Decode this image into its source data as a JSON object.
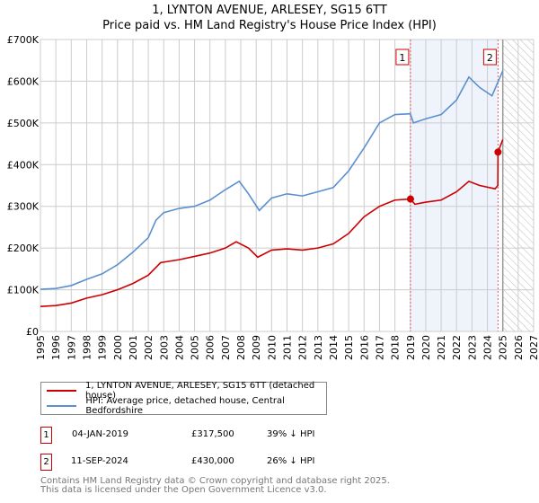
{
  "title": "1, LYNTON AVENUE, ARLESEY, SG15 6TT",
  "subtitle": "Price paid vs. HM Land Registry's House Price Index (HPI)",
  "chart_data": {
    "type": "line",
    "xlim": [
      1995,
      2027
    ],
    "ylim": [
      0,
      700000
    ],
    "x_ticks": [
      "1995",
      "1996",
      "1997",
      "1998",
      "1999",
      "2000",
      "2001",
      "2002",
      "2003",
      "2004",
      "2005",
      "2006",
      "2007",
      "2008",
      "2009",
      "2010",
      "2011",
      "2012",
      "2013",
      "2014",
      "2015",
      "2016",
      "2017",
      "2018",
      "2019",
      "2020",
      "2021",
      "2022",
      "2023",
      "2024",
      "2025",
      "2026",
      "2027"
    ],
    "y_ticks": [
      {
        "v": 0,
        "label": "£0"
      },
      {
        "v": 100000,
        "label": "£100K"
      },
      {
        "v": 200000,
        "label": "£200K"
      },
      {
        "v": 300000,
        "label": "£300K"
      },
      {
        "v": 400000,
        "label": "£400K"
      },
      {
        "v": 500000,
        "label": "£500K"
      },
      {
        "v": 600000,
        "label": "£600K"
      },
      {
        "v": 700000,
        "label": "£700K"
      }
    ],
    "grid": true,
    "series": [
      {
        "name": "1, LYNTON AVENUE, ARLESEY, SG15 6TT (detached house)",
        "color": "#cc0000",
        "x": [
          1995,
          1996,
          1997,
          1998,
          1999,
          2000,
          2001,
          2002,
          2002.8,
          2004,
          2005,
          2006,
          2007,
          2007.7,
          2008.5,
          2009.1,
          2010,
          2011,
          2012,
          2013,
          2014,
          2015,
          2016,
          2017,
          2018,
          2019.01,
          2019.3,
          2020,
          2021,
          2022,
          2022.8,
          2023.5,
          2024.5,
          2024.68,
          2024.69,
          2025.0
        ],
        "y": [
          60000,
          62000,
          68000,
          80000,
          88000,
          100000,
          115000,
          135000,
          165000,
          172000,
          180000,
          188000,
          200000,
          215000,
          200000,
          178000,
          195000,
          198000,
          195000,
          200000,
          210000,
          235000,
          275000,
          300000,
          315000,
          317500,
          305000,
          310000,
          315000,
          335000,
          360000,
          350000,
          342000,
          350000,
          430000,
          460000
        ]
      },
      {
        "name": "HPI: Average price, detached house, Central Bedfordshire",
        "color": "#5b8fd0",
        "x": [
          1995,
          1996,
          1997,
          1998,
          1999,
          2000,
          2001,
          2002,
          2002.5,
          2003,
          2004,
          2005,
          2006,
          2007,
          2007.9,
          2008.5,
          2009.2,
          2010,
          2011,
          2012,
          2013,
          2014,
          2015,
          2016,
          2017,
          2018,
          2019,
          2019.2,
          2020,
          2021,
          2022,
          2022.8,
          2023.5,
          2024.3,
          2025.0
        ],
        "y": [
          101000,
          103000,
          110000,
          125000,
          138000,
          160000,
          190000,
          225000,
          267000,
          285000,
          295000,
          300000,
          315000,
          340000,
          360000,
          330000,
          290000,
          320000,
          330000,
          325000,
          335000,
          345000,
          385000,
          440000,
          500000,
          520000,
          522000,
          500000,
          510000,
          520000,
          555000,
          610000,
          585000,
          565000,
          625000
        ]
      }
    ],
    "annotations": [
      {
        "label": "1",
        "x": 2019.01,
        "y": 317500
      },
      {
        "label": "2",
        "x": 2024.69,
        "y": 430000
      }
    ],
    "shaded_between": [
      2019.01,
      2024.69
    ],
    "forecast_hatch_from": 2025.0
  },
  "legend": [
    {
      "label": "1, LYNTON AVENUE, ARLESEY, SG15 6TT (detached house)",
      "color": "#cc0000"
    },
    {
      "label": "HPI: Average price, detached house, Central Bedfordshire",
      "color": "#5b8fd0"
    }
  ],
  "transactions": [
    {
      "num": "1",
      "date": "04-JAN-2019",
      "price": "£317,500",
      "hpi": "39% ↓ HPI"
    },
    {
      "num": "2",
      "date": "11-SEP-2024",
      "price": "£430,000",
      "hpi": "26% ↓ HPI"
    }
  ],
  "footer": [
    "Contains HM Land Registry data © Crown copyright and database right 2025.",
    "This data is licensed under the Open Government Licence v3.0."
  ]
}
